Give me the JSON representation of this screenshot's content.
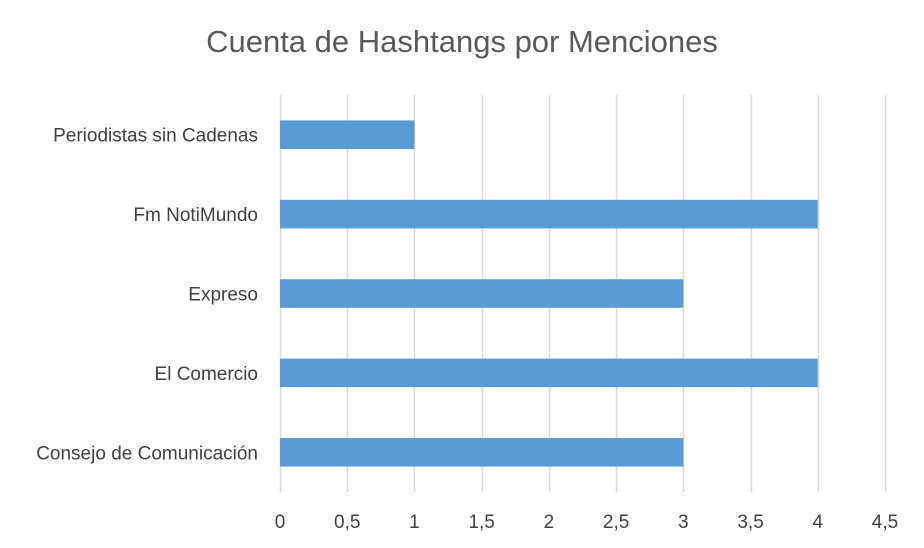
{
  "chart_data": {
    "type": "bar",
    "orientation": "horizontal",
    "title": "Cuenta de Hashtangs por Menciones",
    "categories": [
      "Consejo de Comunicación",
      "El Comercio",
      "Expreso",
      "Fm NotiMundo",
      "Periodistas sin Cadenas"
    ],
    "values": [
      3,
      4,
      3,
      4,
      1
    ],
    "xlim": [
      0,
      4.5
    ],
    "x_ticks": [
      0,
      0.5,
      1,
      1.5,
      2,
      2.5,
      3,
      3.5,
      4,
      4.5
    ],
    "x_tick_labels": [
      "0",
      "0,5",
      "1",
      "1,5",
      "2",
      "2,5",
      "3",
      "3,5",
      "4",
      "4,5"
    ],
    "xlabel": "",
    "ylabel": "",
    "grid": true,
    "legend": "none",
    "bar_color": "#5b9bd5",
    "grid_color": "#d9d9d9"
  }
}
